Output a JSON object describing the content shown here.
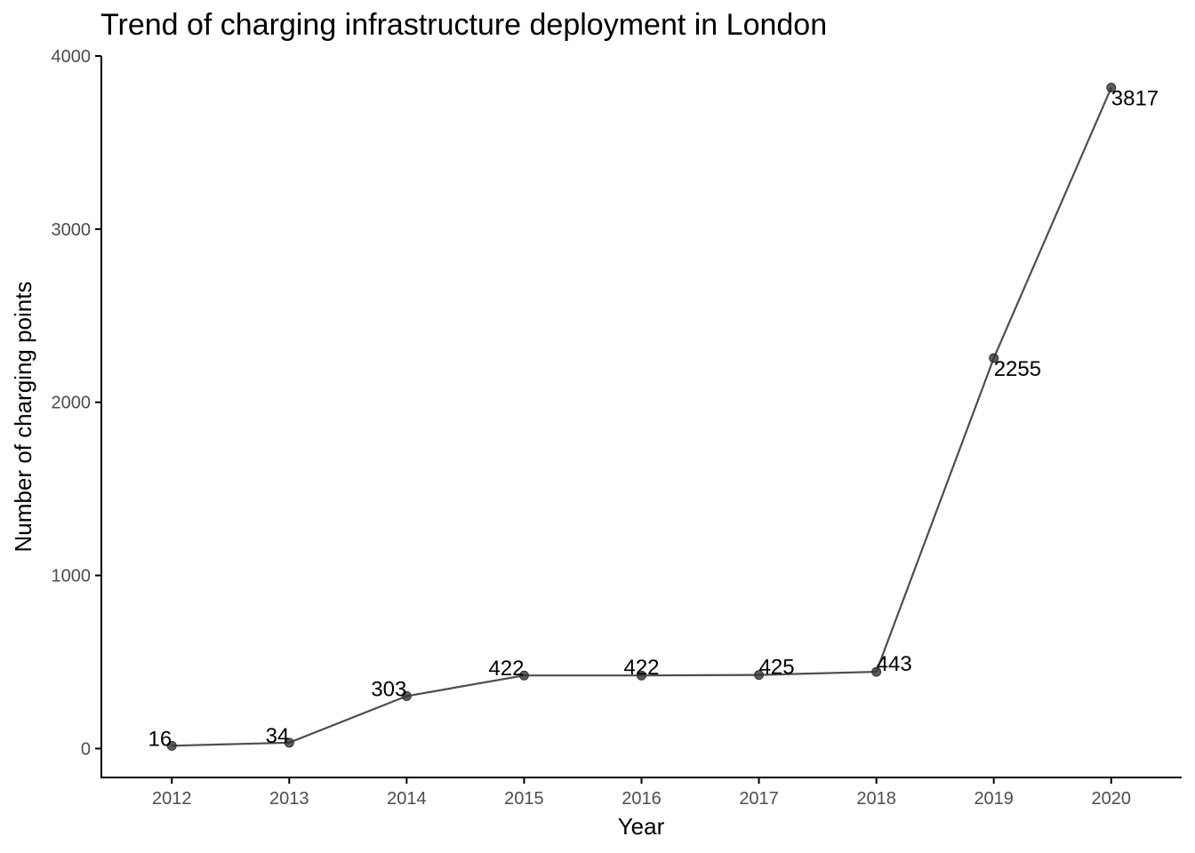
{
  "chart_data": {
    "type": "line",
    "title": "Trend of charging infrastructure deployment in London",
    "xlabel": "Year",
    "ylabel": "Number of charging points",
    "x": [
      2012,
      2013,
      2014,
      2015,
      2016,
      2017,
      2018,
      2019,
      2020
    ],
    "values": [
      16,
      34,
      303,
      422,
      422,
      425,
      443,
      2255,
      3817
    ],
    "data_labels": [
      "16",
      "34",
      "303",
      "422",
      "422",
      "425",
      "443",
      "2255",
      "3817"
    ],
    "x_tick_labels": [
      "2012",
      "2013",
      "2014",
      "2015",
      "2016",
      "2017",
      "2018",
      "2019",
      "2020"
    ],
    "y_ticks": [
      0,
      1000,
      2000,
      3000,
      4000
    ],
    "y_tick_labels": [
      "0",
      "1000",
      "2000",
      "3000",
      "4000"
    ],
    "xlim": [
      2011.4,
      2020.6
    ],
    "ylim": [
      -167,
      4000
    ],
    "grid": false,
    "legend": "none",
    "line_color": "#4d4d4d",
    "point_color": "#333333",
    "axis_color": "#000000"
  }
}
